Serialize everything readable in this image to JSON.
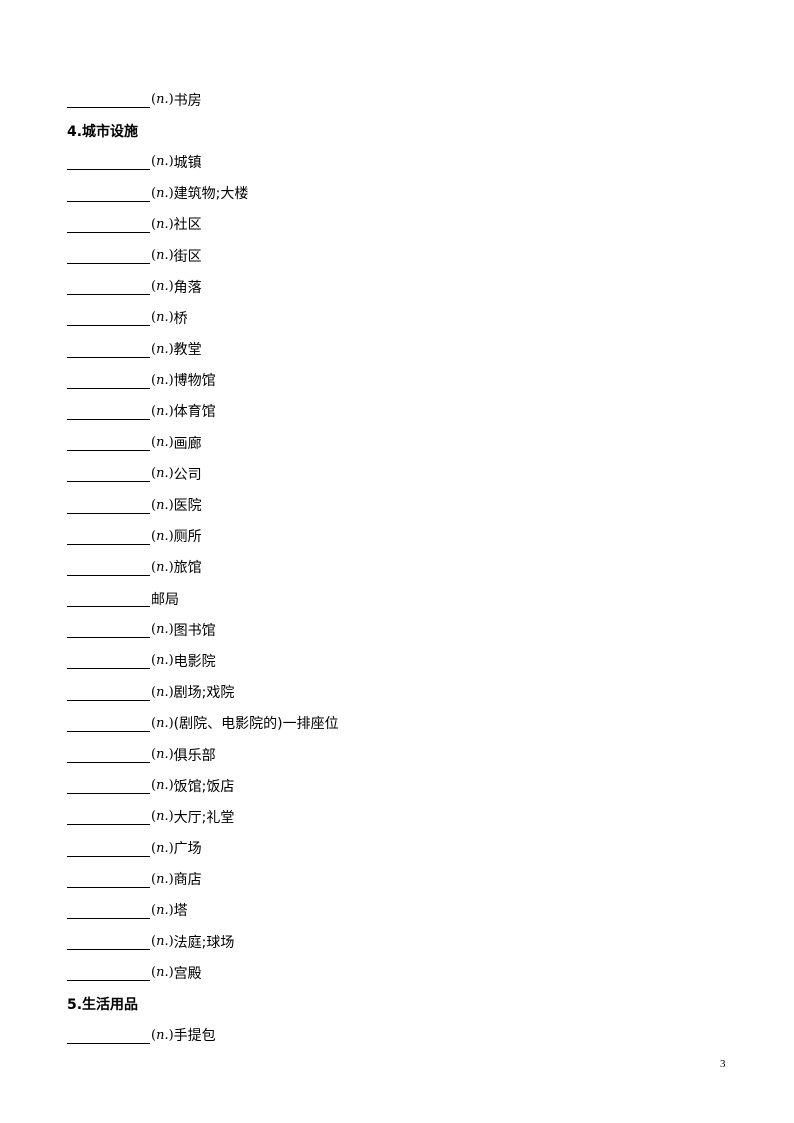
{
  "rows": [
    {
      "type": "item",
      "pos": "n.",
      "meaning": "书房"
    },
    {
      "type": "heading",
      "text": "4.城市设施"
    },
    {
      "type": "item",
      "pos": "n.",
      "meaning": "城镇"
    },
    {
      "type": "item",
      "pos": "n.",
      "meaning": "建筑物;大楼"
    },
    {
      "type": "item",
      "pos": "n.",
      "meaning": "社区"
    },
    {
      "type": "item",
      "pos": "n.",
      "meaning": "街区"
    },
    {
      "type": "item",
      "pos": "n.",
      "meaning": "角落"
    },
    {
      "type": "item",
      "pos": "n.",
      "meaning": "桥"
    },
    {
      "type": "item",
      "pos": "n.",
      "meaning": "教堂"
    },
    {
      "type": "item",
      "pos": "n.",
      "meaning": "博物馆"
    },
    {
      "type": "item",
      "pos": "n.",
      "meaning": "体育馆"
    },
    {
      "type": "item",
      "pos": "n.",
      "meaning": "画廊"
    },
    {
      "type": "item",
      "pos": "n.",
      "meaning": "公司"
    },
    {
      "type": "item",
      "pos": "n.",
      "meaning": "医院"
    },
    {
      "type": "item",
      "pos": "n.",
      "meaning": "厕所"
    },
    {
      "type": "item",
      "pos": "n.",
      "meaning": "旅馆"
    },
    {
      "type": "item",
      "pos": "",
      "meaning": "邮局"
    },
    {
      "type": "item",
      "pos": "n.",
      "meaning": "图书馆"
    },
    {
      "type": "item",
      "pos": "n.",
      "meaning": "电影院"
    },
    {
      "type": "item",
      "pos": "n.",
      "meaning": "剧场;戏院"
    },
    {
      "type": "item",
      "pos": "n.",
      "meaning": "(剧院、电影院的)一排座位"
    },
    {
      "type": "item",
      "pos": "n.",
      "meaning": "俱乐部"
    },
    {
      "type": "item",
      "pos": "n.",
      "meaning": "饭馆;饭店"
    },
    {
      "type": "item",
      "pos": "n.",
      "meaning": "大厅;礼堂"
    },
    {
      "type": "item",
      "pos": "n.",
      "meaning": "广场"
    },
    {
      "type": "item",
      "pos": "n.",
      "meaning": "商店"
    },
    {
      "type": "item",
      "pos": "n.",
      "meaning": "塔"
    },
    {
      "type": "item",
      "pos": "n.",
      "meaning": "法庭;球场"
    },
    {
      "type": "item",
      "pos": "n.",
      "meaning": "宫殿"
    },
    {
      "type": "heading",
      "text": "5.生活用品"
    },
    {
      "type": "item",
      "pos": "n.",
      "meaning": "手提包"
    }
  ],
  "page_number": "3"
}
